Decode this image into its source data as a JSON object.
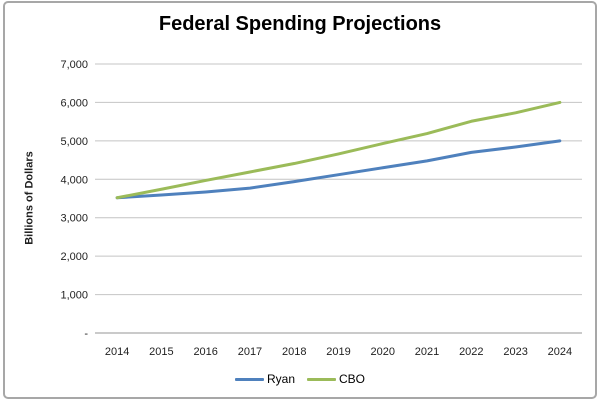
{
  "window": {
    "background": "#ffffff",
    "frame_border_color": "#a7a7a7"
  },
  "chart_data": {
    "type": "line",
    "title": "Federal Spending Projections",
    "xlabel": "",
    "ylabel": "Billions of Dollars",
    "categories": [
      "2014",
      "2015",
      "2016",
      "2017",
      "2018",
      "2019",
      "2020",
      "2021",
      "2022",
      "2023",
      "2024"
    ],
    "series": [
      {
        "name": "Ryan",
        "color": "#4F81BD",
        "values": [
          3520,
          3590,
          3670,
          3770,
          3940,
          4120,
          4300,
          4480,
          4700,
          4840,
          5000
        ]
      },
      {
        "name": "CBO",
        "color": "#9BBB59",
        "values": [
          3520,
          3740,
          3970,
          4190,
          4410,
          4660,
          4930,
          5190,
          5510,
          5730,
          6000
        ]
      }
    ],
    "ylim": [
      0,
      7000
    ],
    "ytick_step": 1000,
    "ytick_labels": [
      "-",
      "1,000",
      "2,000",
      "3,000",
      "4,000",
      "5,000",
      "6,000",
      "7,000"
    ],
    "grid": "horizontal",
    "gridline_color": "#c4c4c4",
    "axis_line_color": "#969696",
    "tick_label_color": "#1f1f1f",
    "legend_position": "bottom"
  }
}
